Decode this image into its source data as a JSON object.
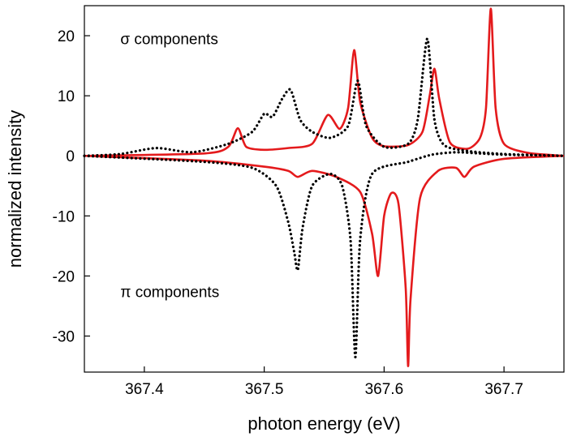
{
  "chart_data": {
    "type": "line",
    "title": "",
    "xlabel": "photon energy (eV)",
    "ylabel": "normalized intensity",
    "xlim": [
      367.35,
      367.75
    ],
    "ylim": [
      -36,
      25
    ],
    "xticks": [
      367.4,
      367.5,
      367.6,
      367.7
    ],
    "xtick_labels": [
      "367.4",
      "367.5",
      "367.6",
      "367.7"
    ],
    "yticks": [
      -30,
      -20,
      -10,
      0,
      10,
      20
    ],
    "ytick_labels": [
      "-30",
      "-20",
      "-10",
      "0",
      "10",
      "20"
    ],
    "grid": false,
    "legend": "none",
    "annotations": [
      {
        "text": "σ components",
        "x": 367.38,
        "y": 18.6
      },
      {
        "text": "π components",
        "x": 367.38,
        "y": -23.5
      }
    ],
    "series": [
      {
        "component": "sigma",
        "color": "#e41a1c",
        "style": "solid",
        "x": [
          367.35,
          367.45,
          367.47,
          367.478,
          367.485,
          367.5,
          367.52,
          367.54,
          367.553,
          367.563,
          367.57,
          367.575,
          367.58,
          367.59,
          367.6,
          367.62,
          367.632,
          367.638,
          367.642,
          367.646,
          367.655,
          367.67,
          367.68,
          367.685,
          367.689,
          367.693,
          367.7,
          367.72,
          367.75
        ],
        "y": [
          0,
          0.4,
          1.5,
          4.6,
          1.5,
          1.0,
          1.3,
          2.0,
          6.8,
          4.5,
          8.0,
          17.6,
          9.0,
          3.0,
          1.6,
          1.8,
          4.0,
          10.0,
          14.5,
          9.5,
          2.2,
          1.2,
          3.0,
          8.0,
          24.5,
          8.0,
          2.0,
          0.5,
          0
        ]
      },
      {
        "component": "sigma",
        "color": "#000000",
        "style": "dotted",
        "x": [
          367.35,
          367.38,
          367.41,
          367.44,
          367.47,
          367.49,
          367.5,
          367.507,
          367.515,
          367.522,
          367.53,
          367.54,
          367.555,
          367.57,
          367.578,
          367.585,
          367.6,
          367.62,
          367.628,
          367.636,
          367.642,
          367.65,
          367.67,
          367.7,
          367.75
        ],
        "y": [
          0,
          0.3,
          1.3,
          0.6,
          2.0,
          4.0,
          7.0,
          6.5,
          9.5,
          11.0,
          6.0,
          4.0,
          3.0,
          5.0,
          12.5,
          5.0,
          1.5,
          2.0,
          6.0,
          19.5,
          6.0,
          1.8,
          0.8,
          0.3,
          0
        ]
      },
      {
        "component": "pi",
        "color": "#e41a1c",
        "style": "solid",
        "x": [
          367.35,
          367.45,
          367.5,
          367.52,
          367.528,
          367.54,
          367.56,
          367.58,
          367.59,
          367.595,
          367.6,
          367.606,
          367.612,
          367.618,
          367.62,
          367.622,
          367.63,
          367.645,
          367.66,
          367.667,
          367.675,
          367.7,
          367.75
        ],
        "y": [
          0,
          -0.8,
          -1.8,
          -2.5,
          -3.5,
          -2.5,
          -3.5,
          -6.0,
          -13.0,
          -20.0,
          -10.0,
          -6.2,
          -8.0,
          -22.0,
          -35.0,
          -24.0,
          -7.0,
          -2.5,
          -2.0,
          -3.5,
          -1.8,
          -0.5,
          0
        ]
      },
      {
        "component": "pi",
        "color": "#000000",
        "style": "dotted",
        "x": [
          367.35,
          367.45,
          367.49,
          367.51,
          367.52,
          367.525,
          367.528,
          367.532,
          367.54,
          367.555,
          367.565,
          367.572,
          367.576,
          367.58,
          367.59,
          367.62,
          367.64,
          367.66,
          367.68,
          367.7,
          367.75
        ],
        "y": [
          0,
          -1.0,
          -2.0,
          -5.0,
          -11.0,
          -16.0,
          -19.0,
          -12.0,
          -5.0,
          -3.0,
          -5.0,
          -14.0,
          -33.5,
          -14.0,
          -3.0,
          -1.0,
          0.2,
          0.6,
          0.4,
          0.2,
          0
        ]
      }
    ]
  }
}
